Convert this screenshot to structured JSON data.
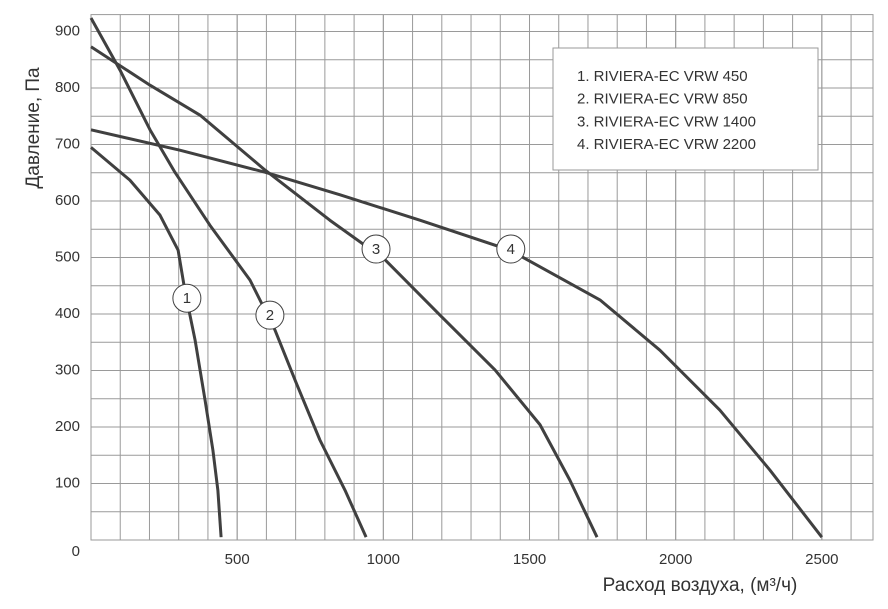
{
  "chart_data": {
    "type": "line",
    "ylabel": "Давление, Па",
    "xlabel": "Расход воздуха, (м³/ч)",
    "xlim": [
      0,
      2675
    ],
    "ylim": [
      0,
      930
    ],
    "xticks": [
      500,
      1000,
      1500,
      2000,
      2500
    ],
    "yticks": [
      0,
      100,
      200,
      300,
      400,
      500,
      600,
      700,
      800,
      900
    ],
    "grid": true,
    "legend": "upper right",
    "series": [
      {
        "name": "1. RIVIERA-EC VRW 450",
        "color": "#404040",
        "x": [
          0,
          133,
          236,
          298,
          321,
          356,
          390,
          417,
          434,
          445
        ],
        "values": [
          695,
          637,
          575,
          513,
          442,
          354,
          248,
          159,
          88,
          5
        ]
      },
      {
        "name": "2. RIVIERA-EC VRW 850",
        "color": "#404040",
        "x": [
          0,
          99,
          202,
          287,
          407,
          544,
          629,
          698,
          783,
          869,
          941
        ],
        "values": [
          924,
          832,
          726,
          651,
          557,
          460,
          372,
          283,
          177,
          88,
          5
        ]
      },
      {
        "name": "3. RIVIERA-EC VRW 1400",
        "color": "#404040",
        "x": [
          0,
          202,
          373,
          595,
          817,
          1006,
          1194,
          1382,
          1536,
          1638,
          1731
        ],
        "values": [
          873,
          805,
          752,
          655,
          566,
          496,
          398,
          301,
          204,
          106,
          5
        ]
      },
      {
        "name": "4. RIVIERA-EC VRW 2200",
        "color": "#404040",
        "x": [
          0,
          304,
          595,
          852,
          1125,
          1433,
          1741,
          1946,
          2151,
          2322,
          2500
        ],
        "values": [
          726,
          690,
          651,
          611,
          566,
          513,
          425,
          336,
          230,
          124,
          5
        ]
      }
    ],
    "annotations": [
      {
        "text": "1",
        "x": 328,
        "y": 428
      },
      {
        "text": "2",
        "x": 612,
        "y": 398
      },
      {
        "text": "3",
        "x": 975,
        "y": 515
      },
      {
        "text": "4",
        "x": 1436,
        "y": 515
      }
    ]
  }
}
